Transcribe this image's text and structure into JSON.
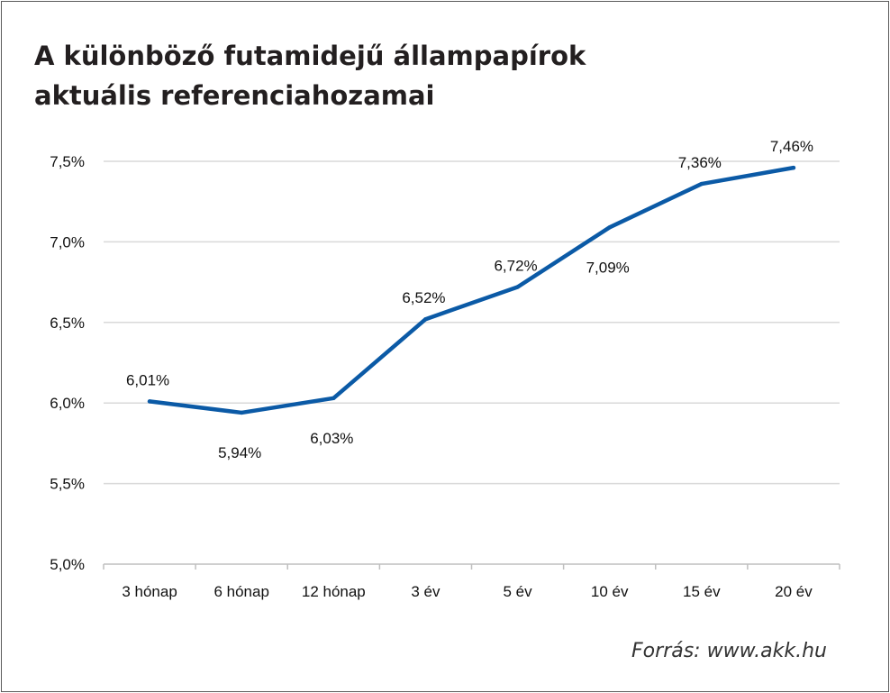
{
  "title_lines": [
    "A különböző futamidejű állampapírok",
    "aktuális referenciahozamai"
  ],
  "source": "Forrás: www.akk.hu",
  "colors": {
    "line": "#0b5aa6",
    "grid": "#d9d9d9",
    "axis": "#bfbfbf"
  },
  "chart_data": {
    "type": "line",
    "title": "A különböző futamidejű állampapírok aktuális referenciahozamai",
    "categories": [
      "3 hónap",
      "6 hónap",
      "12 hónap",
      "3 év",
      "5 év",
      "10 év",
      "15 év",
      "20 év"
    ],
    "series": [
      {
        "values": [
          6.01,
          5.94,
          6.03,
          6.52,
          6.72,
          7.09,
          7.36,
          7.46
        ],
        "labels": [
          "6,01%",
          "5,94%",
          "6,03%",
          "6,52%",
          "6,72%",
          "7,09%",
          "7,36%",
          "7,46%"
        ],
        "label_position": [
          "above",
          "below",
          "below",
          "above",
          "above",
          "below",
          "above",
          "above"
        ]
      }
    ],
    "y_ticks": [
      5.0,
      5.5,
      6.0,
      6.5,
      7.0,
      7.5
    ],
    "y_tick_labels": [
      "5,0%",
      "5,5%",
      "6,0%",
      "6,5%",
      "7,0%",
      "7,5%"
    ],
    "ylim": [
      5.0,
      7.5
    ],
    "grid": true,
    "legend": "none"
  }
}
